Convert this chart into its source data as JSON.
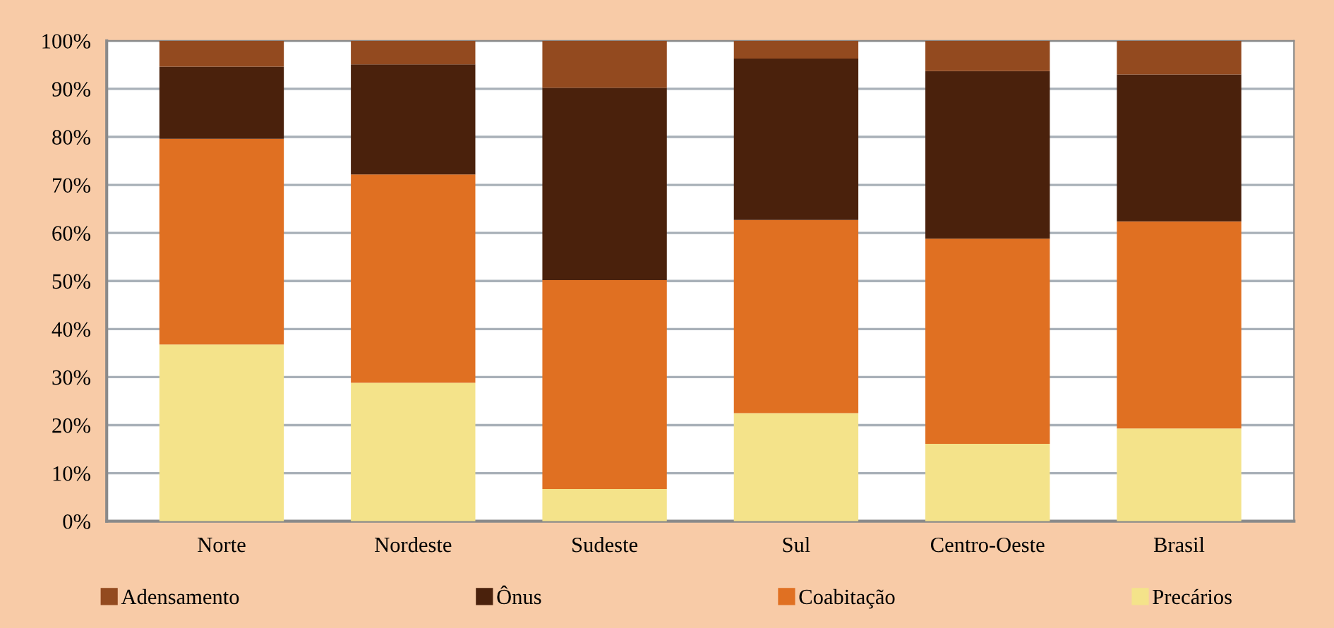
{
  "chart_data": {
    "type": "bar",
    "stacked": true,
    "categories": [
      "Norte",
      "Nordeste",
      "Sudeste",
      "Sul",
      "Centro-Oeste",
      "Brasil"
    ],
    "series": [
      {
        "name": "Precários",
        "color": "#f4e38a",
        "values": [
          36.8,
          28.8,
          6.7,
          22.5,
          16.1,
          19.3
        ]
      },
      {
        "name": "Coabitação",
        "color": "#e07022",
        "values": [
          42.8,
          43.4,
          43.5,
          40.2,
          42.7,
          43.1
        ]
      },
      {
        "name": "Ônus",
        "color": "#4a210c",
        "values": [
          15.0,
          22.9,
          40.0,
          33.6,
          34.9,
          30.6
        ]
      },
      {
        "name": "Adensamento",
        "color": "#934a1f",
        "values": [
          5.4,
          4.9,
          9.8,
          3.7,
          6.3,
          7.0
        ]
      }
    ],
    "ylim": [
      0,
      100
    ],
    "yticks": [
      {
        "value": 0,
        "label": "0%"
      },
      {
        "value": 10,
        "label": "10%"
      },
      {
        "value": 20,
        "label": "20%"
      },
      {
        "value": 30,
        "label": "30%"
      },
      {
        "value": 40,
        "label": "40%"
      },
      {
        "value": 50,
        "label": "50%"
      },
      {
        "value": 60,
        "label": "60%"
      },
      {
        "value": 70,
        "label": "70%"
      },
      {
        "value": 80,
        "label": "80%"
      },
      {
        "value": 90,
        "label": "90%"
      },
      {
        "value": 100,
        "label": "100%"
      }
    ],
    "grid": "y",
    "legend": "bottom"
  }
}
